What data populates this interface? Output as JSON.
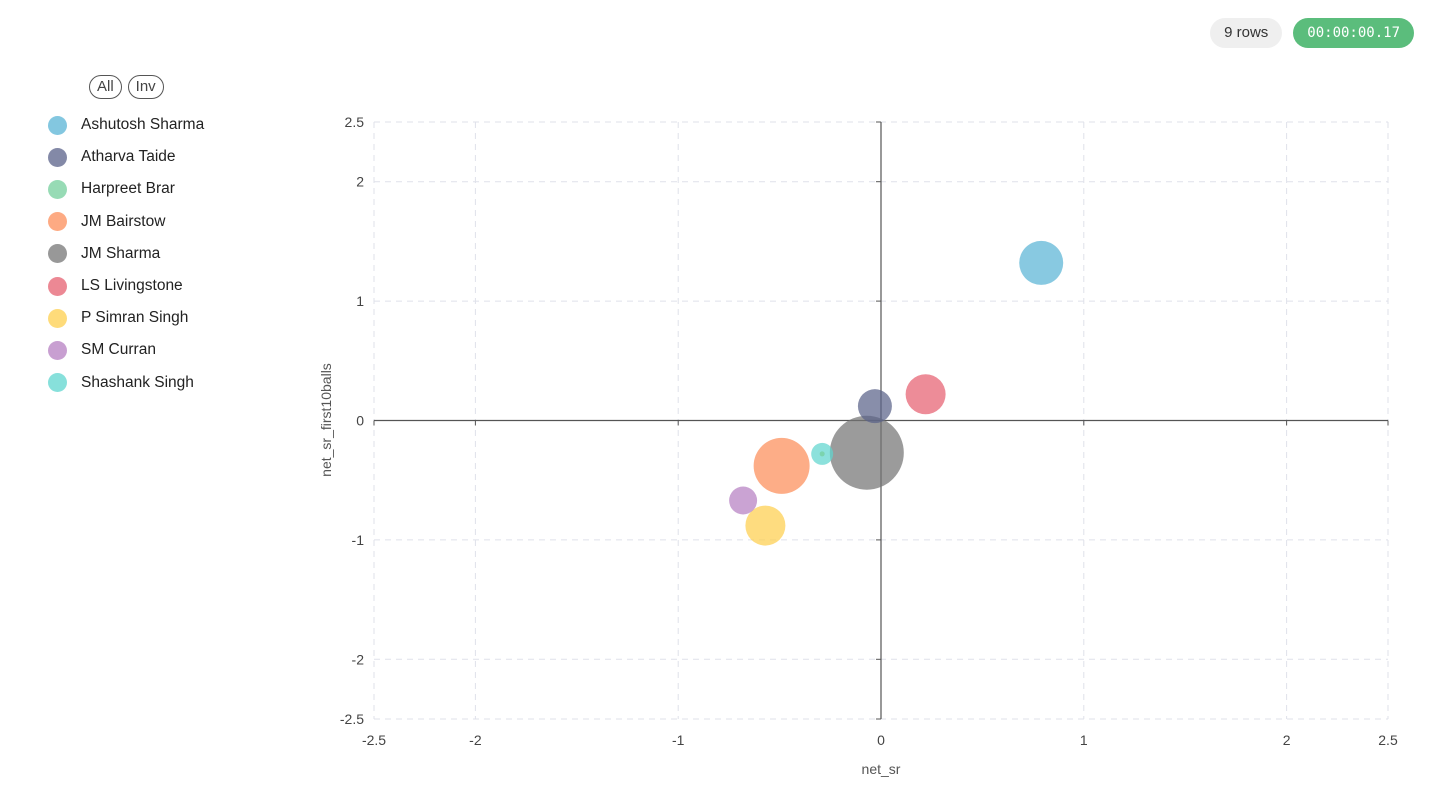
{
  "header": {
    "rows_label": "9 rows",
    "elapsed": "00:00:00.17"
  },
  "legend": {
    "all_label": "All",
    "inv_label": "Inv",
    "items": [
      {
        "name": "Ashutosh Sharma",
        "color": "#5ab4d6"
      },
      {
        "name": "Atharva Taide",
        "color": "#5a6289"
      },
      {
        "name": "Harpreet Brar",
        "color": "#74cf9c"
      },
      {
        "name": "JM Bairstow",
        "color": "#fc8d59"
      },
      {
        "name": "JM Sharma",
        "color": "#757575"
      },
      {
        "name": "LS Livingstone",
        "color": "#e66070"
      },
      {
        "name": "P Simran Singh",
        "color": "#fdcf4d"
      },
      {
        "name": "SM Curran",
        "color": "#b57fc2"
      },
      {
        "name": "Shashank Singh",
        "color": "#5fd5cf"
      }
    ]
  },
  "chart_data": {
    "type": "scatter",
    "subtype": "bubble",
    "xlabel": "net_sr",
    "ylabel": "net_sr_first10balls",
    "xlim": [
      -2.5,
      2.5
    ],
    "ylim": [
      -2.5,
      2.5
    ],
    "xticks": [
      "-2.5",
      "-2",
      "-1",
      "0",
      "1",
      "2",
      "2.5"
    ],
    "yticks": [
      "2.5",
      "2",
      "1",
      "0",
      "-1",
      "-2",
      "-2.5"
    ],
    "xtick_values": [
      -2.5,
      -2,
      -1,
      0,
      1,
      2,
      2.5
    ],
    "ytick_values": [
      2.5,
      2,
      1,
      0,
      -1,
      -2,
      -2.5
    ],
    "grid": true,
    "legend_position": "left",
    "points": [
      {
        "name": "Ashutosh Sharma",
        "x": 0.79,
        "y": 1.32,
        "size": 22,
        "color": "#5ab4d6"
      },
      {
        "name": "Atharva Taide",
        "x": -0.03,
        "y": 0.12,
        "size": 17,
        "color": "#5a6289"
      },
      {
        "name": "Harpreet Brar",
        "x": -0.29,
        "y": -0.28,
        "size": 2.5,
        "color": "#74cf9c"
      },
      {
        "name": "JM Bairstow",
        "x": -0.49,
        "y": -0.38,
        "size": 28,
        "color": "#fc8d59"
      },
      {
        "name": "JM Sharma",
        "x": -0.07,
        "y": -0.27,
        "size": 37,
        "color": "#757575"
      },
      {
        "name": "LS Livingstone",
        "x": 0.22,
        "y": 0.22,
        "size": 20,
        "color": "#e66070"
      },
      {
        "name": "P Simran Singh",
        "x": -0.57,
        "y": -0.88,
        "size": 20,
        "color": "#fdcf4d"
      },
      {
        "name": "SM Curran",
        "x": -0.68,
        "y": -0.67,
        "size": 14,
        "color": "#b57fc2"
      },
      {
        "name": "Shashank Singh",
        "x": -0.29,
        "y": -0.28,
        "size": 11,
        "color": "#5fd5cf"
      }
    ]
  }
}
